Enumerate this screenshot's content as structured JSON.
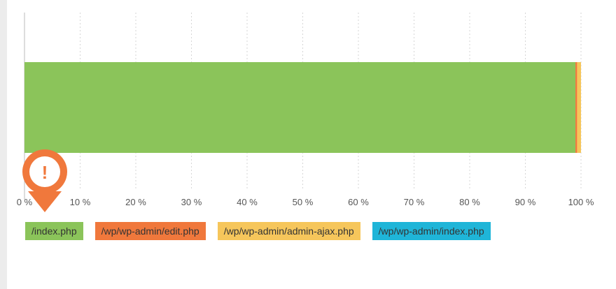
{
  "chart_data": {
    "type": "bar",
    "orientation": "horizontal",
    "stacked": true,
    "percent_scale": true,
    "categories": [
      ""
    ],
    "series": [
      {
        "name": "/index.php",
        "values": [
          99.0
        ],
        "color": "#8bc45a"
      },
      {
        "name": "/wp/wp-admin/edit.php",
        "values": [
          0.3
        ],
        "color": "#f0783c"
      },
      {
        "name": "/wp/wp-admin/admin-ajax.php",
        "values": [
          0.7
        ],
        "color": "#f6c65b"
      },
      {
        "name": "/wp/wp-admin/index.php",
        "values": [
          0.0
        ],
        "color": "#1fb5d8"
      }
    ],
    "xlim": [
      0,
      100
    ],
    "xticks": [
      0,
      10,
      20,
      30,
      40,
      50,
      60,
      70,
      80,
      90,
      100
    ],
    "xtick_labels": [
      "0 %",
      "10 %",
      "20 %",
      "30 %",
      "40 %",
      "50 %",
      "60 %",
      "70 %",
      "80 %",
      "90 %",
      "100 %"
    ],
    "grid": true,
    "legend_position": "bottom",
    "title": "",
    "xlabel": "",
    "ylabel": ""
  },
  "alert_icon": "exclamation-alert-icon",
  "alert_symbol": "!",
  "colors": {
    "grid": "#d6d6d6",
    "axis": "#bbbbbb",
    "tick_text": "#555555",
    "alert": "#f0783c"
  }
}
